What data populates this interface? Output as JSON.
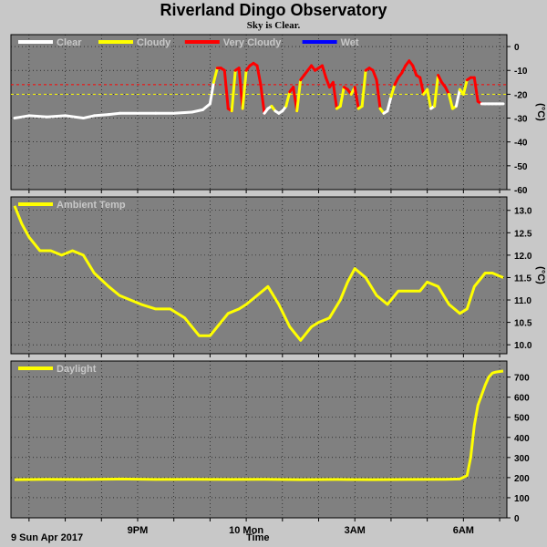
{
  "header": {
    "title": "Riverland Dingo Observatory",
    "subtitle": "Sky is Clear."
  },
  "footer": {
    "date_label": "9 Sun Apr 2017",
    "xlabel": "Time"
  },
  "colors": {
    "plot_bg": "#808080",
    "page_bg": "#c8c8c8",
    "grid": "#000000",
    "clear": "#ffffff",
    "cloudy": "#ffff00",
    "very_cloudy": "#ff0000",
    "wet": "#0000ff",
    "threshold": "#ff0000"
  },
  "chart_data": [
    {
      "type": "line",
      "name": "sky",
      "ylabel": "(°C)",
      "ylim": [
        -60,
        5
      ],
      "yticks": [
        0,
        -10,
        -20,
        -30,
        -40,
        -50,
        -60
      ],
      "xlim": [
        17.5,
        31.2
      ],
      "xticks": [
        {
          "x": 21,
          "label": "9PM"
        },
        {
          "x": 24,
          "label": "10 Mon"
        },
        {
          "x": 27,
          "label": "3AM"
        },
        {
          "x": 30,
          "label": "6AM"
        }
      ],
      "grid": true,
      "legend": [
        {
          "label": "Clear",
          "color": "#ffffff"
        },
        {
          "label": "Cloudy",
          "color": "#ffff00"
        },
        {
          "label": "Very Cloudy",
          "color": "#ff0000"
        },
        {
          "label": "Wet",
          "color": "#0000ff"
        }
      ],
      "thresholds": [
        -16,
        -20
      ],
      "x": [
        17.6,
        18.0,
        18.5,
        19.0,
        19.5,
        19.8,
        20.2,
        20.5,
        21.0,
        21.5,
        22.0,
        22.5,
        22.8,
        23.0,
        23.1,
        23.2,
        23.3,
        23.4,
        23.5,
        23.6,
        23.7,
        23.8,
        23.9,
        24.0,
        24.1,
        24.2,
        24.3,
        24.4,
        24.5,
        24.6,
        24.7,
        24.8,
        24.9,
        25.0,
        25.1,
        25.2,
        25.3,
        25.4,
        25.5,
        25.6,
        25.7,
        25.8,
        25.9,
        26.0,
        26.1,
        26.2,
        26.3,
        26.4,
        26.5,
        26.6,
        26.7,
        26.8,
        26.9,
        27.0,
        27.1,
        27.2,
        27.3,
        27.4,
        27.5,
        27.6,
        27.7,
        27.8,
        27.9,
        28.0,
        28.1,
        28.2,
        28.3,
        28.4,
        28.5,
        28.6,
        28.7,
        28.8,
        28.9,
        29.0,
        29.1,
        29.2,
        29.3,
        29.4,
        29.5,
        29.6,
        29.7,
        29.8,
        29.9,
        30.0,
        30.1,
        30.2,
        30.3,
        30.4,
        30.5,
        30.6,
        30.7,
        30.8,
        30.9,
        31.0,
        31.1
      ],
      "y": [
        -30,
        -29,
        -29.5,
        -29,
        -30,
        -29,
        -28.5,
        -28,
        -28,
        -28,
        -28,
        -27.5,
        -26.5,
        -24,
        -15,
        -9,
        -9,
        -10,
        -26,
        -27,
        -10,
        -9,
        -26,
        -10,
        -8,
        -7,
        -8,
        -16,
        -28,
        -26,
        -25,
        -27,
        -28,
        -27,
        -25,
        -19,
        -17,
        -27,
        -14,
        -12,
        -10,
        -8,
        -10,
        -9,
        -8,
        -13,
        -17,
        -15,
        -26,
        -25,
        -17,
        -18,
        -20,
        -17,
        -26,
        -25,
        -10,
        -9,
        -10,
        -14,
        -26,
        -28,
        -27,
        -21,
        -16,
        -13,
        -11,
        -8,
        -6,
        -8,
        -12,
        -13,
        -20,
        -18,
        -26,
        -25,
        -12,
        -15,
        -17,
        -20,
        -26,
        -25,
        -18,
        -20,
        -14,
        -13,
        -13,
        -23,
        -24,
        -24,
        -24,
        -24,
        -24,
        -24,
        -24
      ],
      "status": [
        "clear",
        "clear",
        "clear",
        "clear",
        "clear",
        "clear",
        "clear",
        "clear",
        "clear",
        "clear",
        "clear",
        "clear",
        "clear",
        "clear",
        "cloudy",
        "very_cloudy",
        "very_cloudy",
        "very_cloudy",
        "very_cloudy",
        "cloudy",
        "very_cloudy",
        "very_cloudy",
        "cloudy",
        "very_cloudy",
        "very_cloudy",
        "very_cloudy",
        "very_cloudy",
        "very_cloudy",
        "clear",
        "clear",
        "cloudy",
        "clear",
        "clear",
        "clear",
        "cloudy",
        "very_cloudy",
        "very_cloudy",
        "cloudy",
        "very_cloudy",
        "very_cloudy",
        "very_cloudy",
        "very_cloudy",
        "very_cloudy",
        "very_cloudy",
        "very_cloudy",
        "very_cloudy",
        "very_cloudy",
        "very_cloudy",
        "cloudy",
        "cloudy",
        "very_cloudy",
        "very_cloudy",
        "cloudy",
        "very_cloudy",
        "cloudy",
        "cloudy",
        "very_cloudy",
        "very_cloudy",
        "very_cloudy",
        "very_cloudy",
        "cloudy",
        "clear",
        "clear",
        "cloudy",
        "very_cloudy",
        "very_cloudy",
        "very_cloudy",
        "very_cloudy",
        "very_cloudy",
        "very_cloudy",
        "very_cloudy",
        "very_cloudy",
        "cloudy",
        "cloudy",
        "clear",
        "cloudy",
        "very_cloudy",
        "very_cloudy",
        "very_cloudy",
        "cloudy",
        "cloudy",
        "clear",
        "cloudy",
        "cloudy",
        "very_cloudy",
        "very_cloudy",
        "very_cloudy",
        "very_cloudy",
        "clear",
        "clear",
        "clear",
        "clear",
        "clear",
        "clear",
        "clear"
      ]
    },
    {
      "type": "line",
      "name": "ambient",
      "ylabel": "(°C)",
      "ylim": [
        9.8,
        13.3
      ],
      "yticks": [
        13.0,
        12.5,
        12.0,
        11.5,
        11.0,
        10.5,
        10.0
      ],
      "xlim": [
        17.5,
        31.2
      ],
      "xticks": [
        {
          "x": 21,
          "label": "9PM"
        },
        {
          "x": 24,
          "label": "10 Mon"
        },
        {
          "x": 27,
          "label": "3AM"
        },
        {
          "x": 30,
          "label": "6AM"
        }
      ],
      "grid": true,
      "legend": [
        {
          "label": "Ambient Temp",
          "color": "#ffff00"
        }
      ],
      "x": [
        17.6,
        17.8,
        18.0,
        18.3,
        18.6,
        18.9,
        19.2,
        19.5,
        19.8,
        20.2,
        20.5,
        20.8,
        21.1,
        21.5,
        21.9,
        22.3,
        22.7,
        23.0,
        23.2,
        23.5,
        23.8,
        24.0,
        24.3,
        24.6,
        24.9,
        25.2,
        25.5,
        25.8,
        26.0,
        26.3,
        26.6,
        26.8,
        27.0,
        27.3,
        27.6,
        27.9,
        28.2,
        28.5,
        28.8,
        29.0,
        29.3,
        29.6,
        29.9,
        30.1,
        30.3,
        30.6,
        30.8,
        31.1
      ],
      "y": [
        13.1,
        12.7,
        12.4,
        12.1,
        12.1,
        12.0,
        12.1,
        12.0,
        11.6,
        11.3,
        11.1,
        11.0,
        10.9,
        10.8,
        10.8,
        10.6,
        10.2,
        10.2,
        10.4,
        10.7,
        10.8,
        10.9,
        11.1,
        11.3,
        10.9,
        10.4,
        10.1,
        10.4,
        10.5,
        10.6,
        11.0,
        11.4,
        11.7,
        11.5,
        11.1,
        10.9,
        11.2,
        11.2,
        11.2,
        11.4,
        11.3,
        10.9,
        10.7,
        10.8,
        11.3,
        11.6,
        11.6,
        11.5
      ]
    },
    {
      "type": "line",
      "name": "daylight",
      "ylabel": "",
      "ylim": [
        0,
        780
      ],
      "yticks": [
        700,
        600,
        500,
        400,
        300,
        200,
        100,
        0
      ],
      "xlim": [
        17.5,
        31.2
      ],
      "xticks": [
        {
          "x": 21,
          "label": "9PM"
        },
        {
          "x": 24,
          "label": "10 Mon"
        },
        {
          "x": 27,
          "label": "3AM"
        },
        {
          "x": 30,
          "label": "6AM"
        }
      ],
      "grid": true,
      "legend": [
        {
          "label": "Daylight",
          "color": "#ffff00"
        }
      ],
      "x": [
        17.6,
        18.5,
        19.5,
        20.5,
        21.5,
        22.5,
        23.5,
        24.5,
        25.5,
        26.5,
        27.5,
        28.5,
        29.5,
        29.9,
        30.1,
        30.2,
        30.3,
        30.4,
        30.5,
        30.6,
        30.7,
        30.8,
        30.9,
        31.0,
        31.1
      ],
      "y": [
        190,
        192,
        191,
        193,
        191,
        192,
        191,
        192,
        190,
        191,
        190,
        191,
        192,
        193,
        210,
        300,
        460,
        560,
        610,
        660,
        700,
        720,
        725,
        728,
        730
      ]
    }
  ]
}
